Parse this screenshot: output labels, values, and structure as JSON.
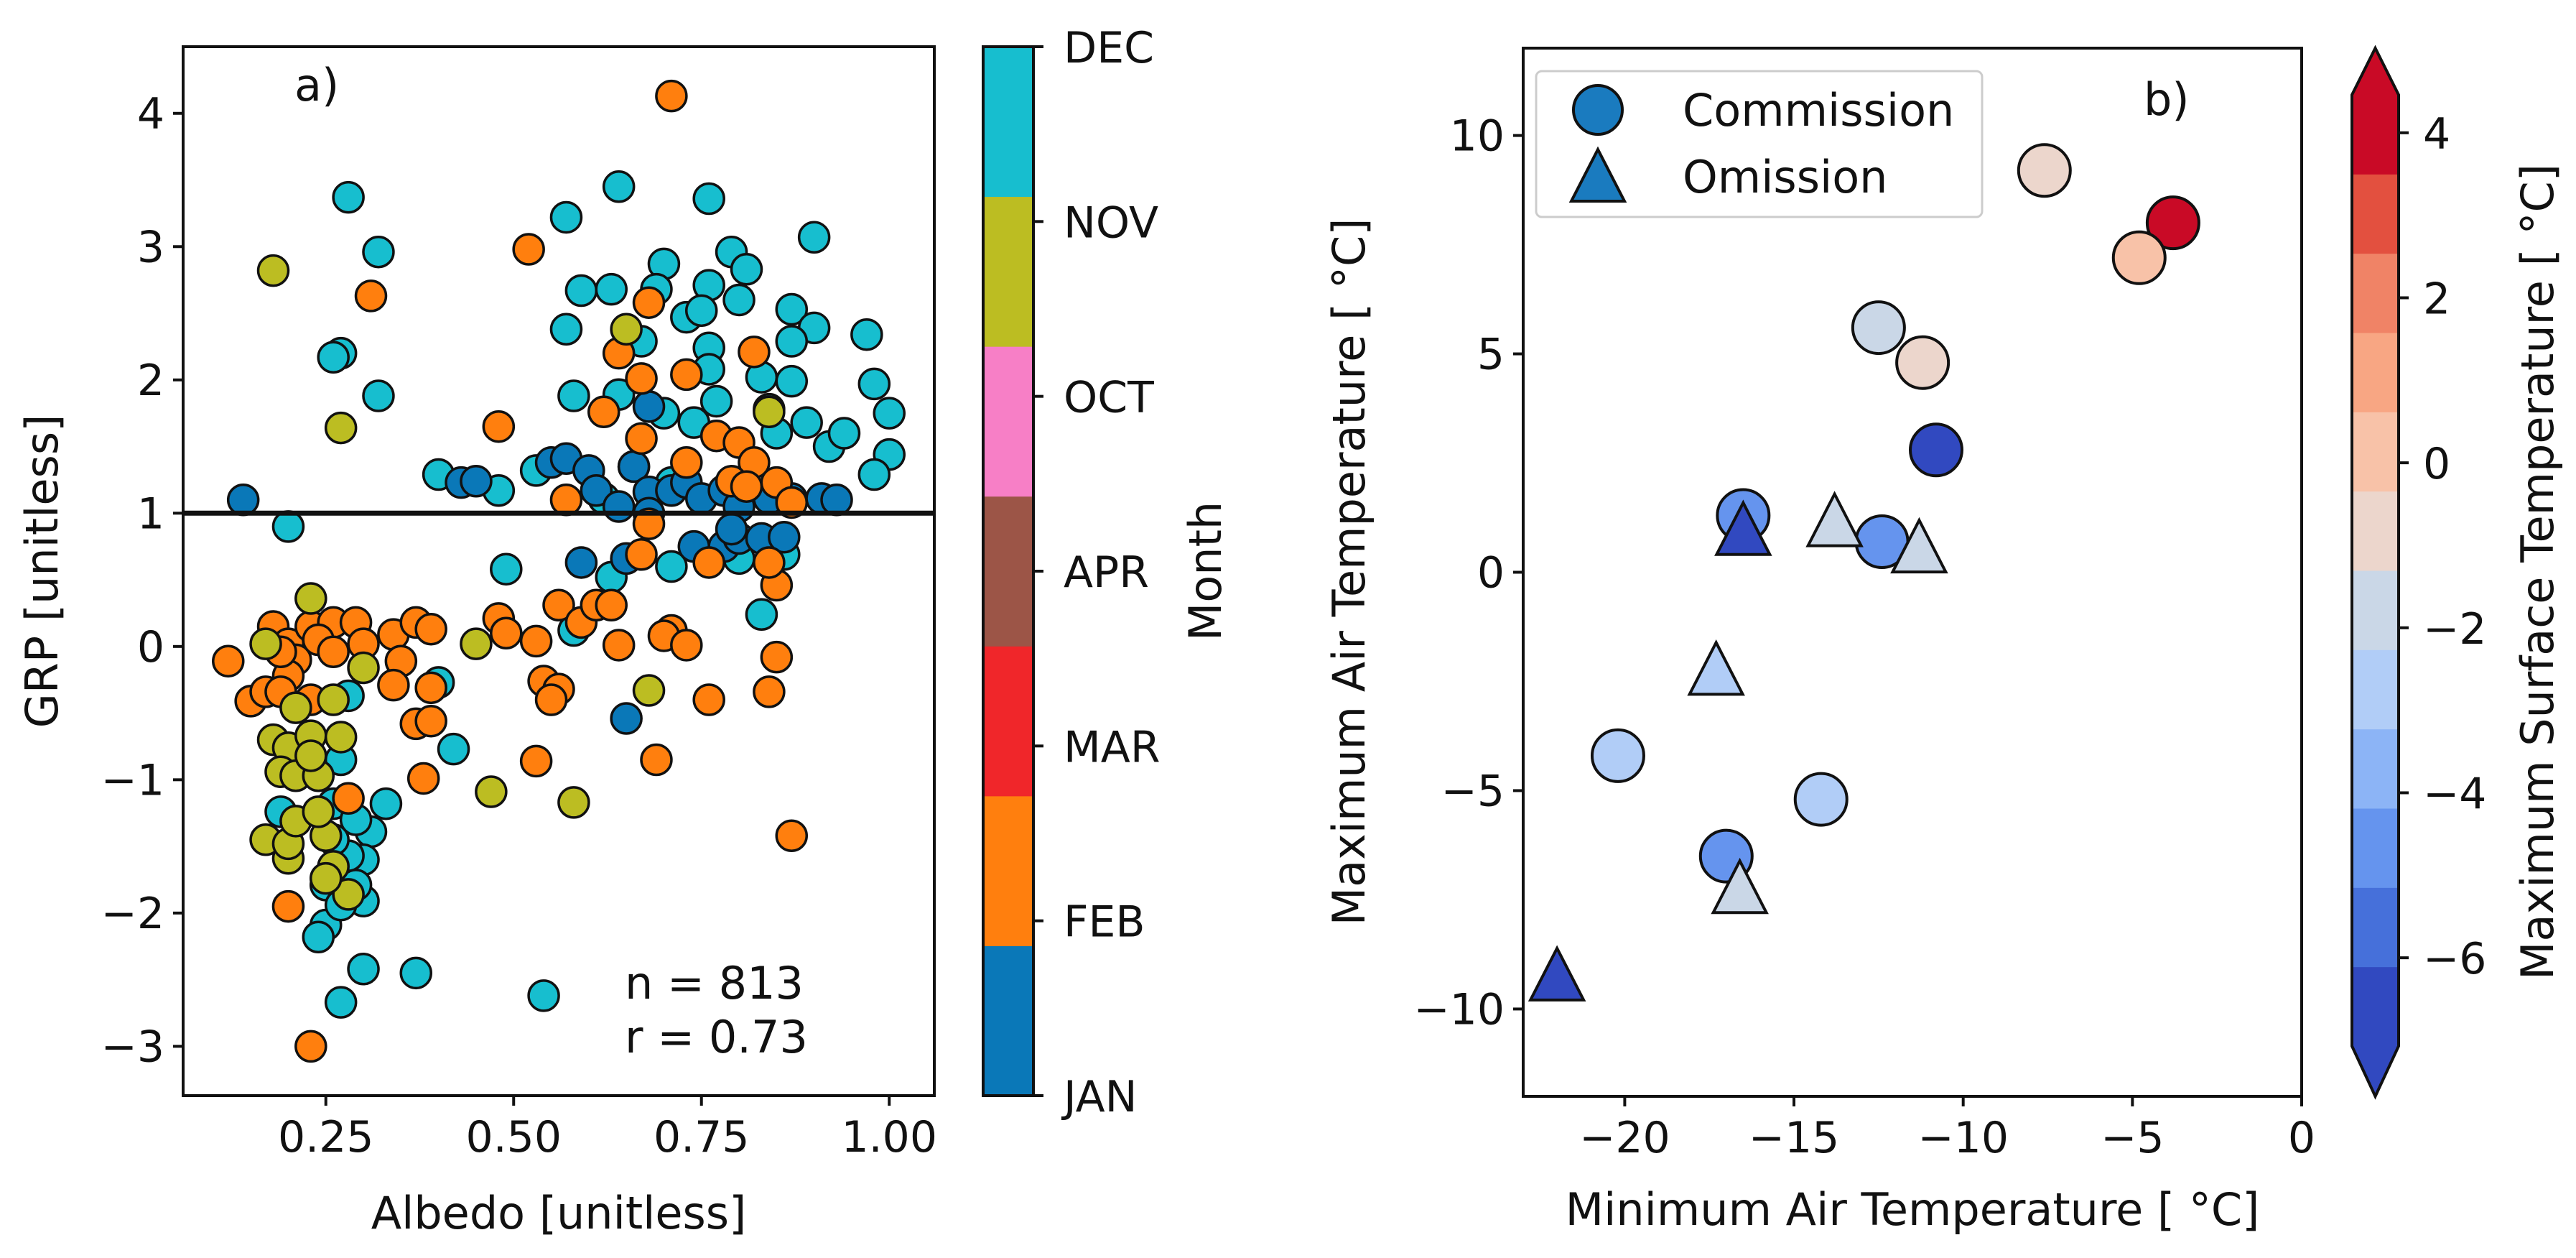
{
  "chart_data": [
    {
      "type": "scatter",
      "panel_label": "a)",
      "xlabel": "Albedo [unitless]",
      "ylabel": "GRP [unitless]",
      "xlim": [
        0.06,
        1.06
      ],
      "ylim": [
        -3.37,
        4.5
      ],
      "xticks": [
        0.25,
        0.5,
        0.75,
        1.0
      ],
      "xtick_labels": [
        "0.25",
        "0.50",
        "0.75",
        "1.00"
      ],
      "yticks": [
        -3,
        -2,
        -1,
        0,
        1,
        2,
        3,
        4
      ],
      "ytick_labels": [
        "−3",
        "−2",
        "−1",
        "0",
        "1",
        "2",
        "3",
        "4"
      ],
      "reference_line_y": 1,
      "annotation": [
        "n = 813",
        "r = 0.73"
      ],
      "colorbar": {
        "label": "Month",
        "categories": [
          "JAN",
          "FEB",
          "MAR",
          "APR",
          "OCT",
          "NOV",
          "DEC"
        ],
        "colors": [
          "#0a78b8",
          "#ff7f0e",
          "#f0262a",
          "#9c5547",
          "#f77fc6",
          "#bcbd22",
          "#17becf"
        ]
      },
      "note": "Representative sample of the 813 points; month index into colorbar.categories",
      "points": [
        [
          0.28,
          3.37,
          6
        ],
        [
          0.32,
          2.96,
          6
        ],
        [
          0.27,
          2.2,
          6
        ],
        [
          0.26,
          2.17,
          6
        ],
        [
          0.32,
          1.88,
          6
        ],
        [
          0.2,
          0.9,
          6
        ],
        [
          0.64,
          3.45,
          6
        ],
        [
          0.57,
          3.22,
          6
        ],
        [
          0.76,
          3.36,
          6
        ],
        [
          0.9,
          3.07,
          6
        ],
        [
          0.79,
          2.96,
          6
        ],
        [
          0.81,
          2.83,
          6
        ],
        [
          0.7,
          2.87,
          6
        ],
        [
          0.59,
          2.67,
          6
        ],
        [
          0.63,
          2.68,
          6
        ],
        [
          0.69,
          2.68,
          6
        ],
        [
          0.76,
          2.71,
          6
        ],
        [
          0.8,
          2.6,
          6
        ],
        [
          0.87,
          2.53,
          6
        ],
        [
          0.57,
          2.38,
          6
        ],
        [
          0.9,
          2.39,
          6
        ],
        [
          0.97,
          2.34,
          6
        ],
        [
          0.73,
          2.47,
          6
        ],
        [
          0.75,
          2.52,
          6
        ],
        [
          0.67,
          2.29,
          6
        ],
        [
          0.87,
          2.29,
          6
        ],
        [
          0.76,
          2.24,
          6
        ],
        [
          0.76,
          2.08,
          6
        ],
        [
          0.83,
          2.02,
          6
        ],
        [
          0.87,
          1.99,
          6
        ],
        [
          0.98,
          1.97,
          6
        ],
        [
          0.58,
          1.88,
          6
        ],
        [
          0.64,
          1.89,
          6
        ],
        [
          0.77,
          1.84,
          6
        ],
        [
          0.7,
          1.75,
          6
        ],
        [
          0.84,
          1.78,
          6
        ],
        [
          0.89,
          1.68,
          6
        ],
        [
          1.0,
          1.75,
          6
        ],
        [
          0.74,
          1.68,
          6
        ],
        [
          0.4,
          1.29,
          6
        ],
        [
          0.48,
          1.17,
          6
        ],
        [
          0.53,
          1.32,
          6
        ],
        [
          0.92,
          1.5,
          6
        ],
        [
          0.94,
          1.6,
          6
        ],
        [
          1.0,
          1.44,
          6
        ],
        [
          0.98,
          1.29,
          6
        ],
        [
          0.85,
          1.6,
          6
        ],
        [
          0.66,
          1.35,
          6
        ],
        [
          0.62,
          1.11,
          6
        ],
        [
          0.71,
          1.23,
          6
        ],
        [
          0.49,
          0.58,
          6
        ],
        [
          0.63,
          0.52,
          6
        ],
        [
          0.71,
          0.6,
          6
        ],
        [
          0.8,
          0.66,
          6
        ],
        [
          0.86,
          0.69,
          6
        ],
        [
          0.83,
          0.24,
          6
        ],
        [
          0.58,
          0.12,
          6
        ],
        [
          0.4,
          -0.27,
          6
        ],
        [
          0.42,
          -0.77,
          6
        ],
        [
          0.28,
          -0.37,
          6
        ],
        [
          0.27,
          -0.85,
          6
        ],
        [
          0.19,
          -1.24,
          6
        ],
        [
          0.26,
          -1.18,
          6
        ],
        [
          0.33,
          -1.18,
          6
        ],
        [
          0.31,
          -1.39,
          6
        ],
        [
          0.3,
          -1.6,
          6
        ],
        [
          0.3,
          -1.91,
          6
        ],
        [
          0.25,
          -2.09,
          6
        ],
        [
          0.24,
          -2.18,
          6
        ],
        [
          0.3,
          -2.42,
          6
        ],
        [
          0.37,
          -2.45,
          6
        ],
        [
          0.27,
          -2.67,
          6
        ],
        [
          0.54,
          -2.62,
          6
        ],
        [
          0.29,
          -1.79,
          6
        ],
        [
          0.25,
          -1.79,
          6
        ],
        [
          0.28,
          -1.57,
          6
        ],
        [
          0.26,
          -1.45,
          6
        ],
        [
          0.27,
          -1.94,
          6
        ],
        [
          0.29,
          -1.3,
          6
        ],
        [
          0.14,
          1.1,
          0
        ],
        [
          0.43,
          1.23,
          0
        ],
        [
          0.45,
          1.24,
          0
        ],
        [
          0.55,
          1.38,
          0
        ],
        [
          0.57,
          1.41,
          0
        ],
        [
          0.6,
          1.32,
          0
        ],
        [
          0.61,
          1.17,
          0
        ],
        [
          0.66,
          1.35,
          0
        ],
        [
          0.68,
          1.8,
          0
        ],
        [
          0.68,
          1.16,
          0
        ],
        [
          0.71,
          1.17,
          0
        ],
        [
          0.73,
          1.23,
          0
        ],
        [
          0.75,
          1.11,
          0
        ],
        [
          0.78,
          1.17,
          0
        ],
        [
          0.8,
          1.05,
          0
        ],
        [
          0.84,
          1.11,
          0
        ],
        [
          0.87,
          1.11,
          0
        ],
        [
          0.91,
          1.11,
          0
        ],
        [
          0.93,
          1.1,
          0
        ],
        [
          0.64,
          1.05,
          0
        ],
        [
          0.59,
          0.63,
          0
        ],
        [
          0.74,
          0.75,
          0
        ],
        [
          0.78,
          0.75,
          0
        ],
        [
          0.8,
          0.81,
          0
        ],
        [
          0.83,
          0.81,
          0
        ],
        [
          0.86,
          0.82,
          0
        ],
        [
          0.65,
          -0.54,
          0
        ],
        [
          0.65,
          0.66,
          0
        ],
        [
          0.68,
          1.0,
          0
        ],
        [
          0.79,
          0.88,
          0
        ],
        [
          0.71,
          4.13,
          1
        ],
        [
          0.52,
          2.98,
          1
        ],
        [
          0.31,
          2.63,
          1
        ],
        [
          0.68,
          2.58,
          1
        ],
        [
          0.64,
          2.2,
          1
        ],
        [
          0.82,
          2.21,
          1
        ],
        [
          0.73,
          2.04,
          1
        ],
        [
          0.67,
          2.01,
          1
        ],
        [
          0.48,
          1.65,
          1
        ],
        [
          0.62,
          1.76,
          1
        ],
        [
          0.67,
          1.56,
          1
        ],
        [
          0.77,
          1.58,
          1
        ],
        [
          0.8,
          1.53,
          1
        ],
        [
          0.73,
          1.38,
          1
        ],
        [
          0.82,
          1.38,
          1
        ],
        [
          0.79,
          1.24,
          1
        ],
        [
          0.81,
          1.2,
          1
        ],
        [
          0.85,
          1.23,
          1
        ],
        [
          0.87,
          1.08,
          1
        ],
        [
          0.57,
          1.1,
          1
        ],
        [
          0.68,
          0.92,
          1
        ],
        [
          0.67,
          0.69,
          1
        ],
        [
          0.76,
          0.63,
          1
        ],
        [
          0.85,
          0.46,
          1
        ],
        [
          0.84,
          0.63,
          1
        ],
        [
          0.56,
          0.31,
          1
        ],
        [
          0.59,
          0.18,
          1
        ],
        [
          0.61,
          0.31,
          1
        ],
        [
          0.63,
          0.31,
          1
        ],
        [
          0.48,
          0.21,
          1
        ],
        [
          0.49,
          0.1,
          1
        ],
        [
          0.53,
          0.04,
          1
        ],
        [
          0.64,
          0.01,
          1
        ],
        [
          0.71,
          0.12,
          1
        ],
        [
          0.7,
          0.08,
          1
        ],
        [
          0.73,
          0.01,
          1
        ],
        [
          0.12,
          -0.11,
          1
        ],
        [
          0.15,
          -0.41,
          1
        ],
        [
          0.34,
          0.09,
          1
        ],
        [
          0.37,
          0.18,
          1
        ],
        [
          0.39,
          0.13,
          1
        ],
        [
          0.35,
          -0.11,
          1
        ],
        [
          0.34,
          -0.29,
          1
        ],
        [
          0.39,
          -0.31,
          1
        ],
        [
          0.37,
          -0.58,
          1
        ],
        [
          0.39,
          -0.56,
          1
        ],
        [
          0.38,
          -0.99,
          1
        ],
        [
          0.53,
          -0.86,
          1
        ],
        [
          0.54,
          -0.26,
          1
        ],
        [
          0.56,
          -0.32,
          1
        ],
        [
          0.55,
          -0.4,
          1
        ],
        [
          0.76,
          -0.4,
          1
        ],
        [
          0.84,
          -0.34,
          1
        ],
        [
          0.85,
          -0.08,
          1
        ],
        [
          0.69,
          -0.85,
          1
        ],
        [
          0.87,
          -1.42,
          1
        ],
        [
          0.2,
          -1.95,
          1
        ],
        [
          0.23,
          -3.0,
          1
        ],
        [
          0.28,
          -1.14,
          1
        ],
        [
          0.18,
          0.15,
          1
        ],
        [
          0.2,
          0.02,
          1
        ],
        [
          0.23,
          0.15,
          1
        ],
        [
          0.26,
          0.18,
          1
        ],
        [
          0.29,
          0.18,
          1
        ],
        [
          0.3,
          0.02,
          1
        ],
        [
          0.21,
          -0.1,
          1
        ],
        [
          0.2,
          -0.22,
          1
        ],
        [
          0.19,
          -0.04,
          1
        ],
        [
          0.24,
          0.05,
          1
        ],
        [
          0.26,
          -0.04,
          1
        ],
        [
          0.17,
          -0.34,
          1
        ],
        [
          0.19,
          -0.34,
          1
        ],
        [
          0.23,
          -0.4,
          1
        ],
        [
          0.18,
          2.82,
          5
        ],
        [
          0.27,
          1.64,
          5
        ],
        [
          0.65,
          2.38,
          5
        ],
        [
          0.84,
          1.76,
          5
        ],
        [
          0.45,
          0.02,
          5
        ],
        [
          0.68,
          -0.33,
          5
        ],
        [
          0.47,
          -1.09,
          5
        ],
        [
          0.58,
          -1.17,
          5
        ],
        [
          0.23,
          0.36,
          5
        ],
        [
          0.17,
          0.02,
          5
        ],
        [
          0.18,
          -0.7,
          5
        ],
        [
          0.2,
          -0.76,
          5
        ],
        [
          0.23,
          -0.67,
          5
        ],
        [
          0.19,
          -0.94,
          5
        ],
        [
          0.21,
          -0.97,
          5
        ],
        [
          0.24,
          -0.97,
          5
        ],
        [
          0.27,
          -0.68,
          5
        ],
        [
          0.23,
          -0.82,
          5
        ],
        [
          0.17,
          -1.45,
          5
        ],
        [
          0.2,
          -1.59,
          5
        ],
        [
          0.2,
          -1.48,
          5
        ],
        [
          0.25,
          -1.42,
          5
        ],
        [
          0.26,
          -1.65,
          5
        ],
        [
          0.28,
          -1.86,
          5
        ],
        [
          0.25,
          -1.74,
          5
        ],
        [
          0.21,
          -1.31,
          5
        ],
        [
          0.24,
          -1.24,
          5
        ],
        [
          0.3,
          -0.16,
          5
        ],
        [
          0.26,
          -0.4,
          5
        ],
        [
          0.21,
          -0.46,
          5
        ]
      ]
    },
    {
      "type": "scatter",
      "panel_label": "b)",
      "xlabel": "Minimum Air Temperature [ °C]",
      "ylabel": "Maximum Air Temperature [ °C]",
      "xlim": [
        -23,
        0
      ],
      "ylim": [
        -12,
        12
      ],
      "xticks": [
        -20,
        -15,
        -10,
        -5,
        0
      ],
      "xtick_labels": [
        "−20",
        "−15",
        "−10",
        "−5",
        "0"
      ],
      "yticks": [
        -10,
        -5,
        0,
        5,
        10
      ],
      "ytick_labels": [
        "−10",
        "−5",
        "0",
        "5",
        "10"
      ],
      "legend": {
        "position": "top-left",
        "entries": [
          {
            "label": "Commission",
            "marker": "circle"
          },
          {
            "label": "Omission",
            "marker": "triangle"
          }
        ],
        "color": "#1a7bbf"
      },
      "colorbar": {
        "label": "Maximum Surface Temperature [ °C]",
        "range": [
          -7.07,
          4.46
        ],
        "extend": "both",
        "ticks": [
          -6,
          -4,
          -2,
          0,
          2,
          4
        ],
        "tick_labels": [
          "−6",
          "−4",
          "−2",
          "0",
          "2",
          "4"
        ],
        "colors": [
          "#3149c0",
          "#4670da",
          "#6594ee",
          "#8cb4f6",
          "#b1cdf7",
          "#cad7e7",
          "#ecd6cc",
          "#f8c2a8",
          "#f8a683",
          "#f08366",
          "#e3503f",
          "#c90a26"
        ]
      },
      "series": [
        {
          "name": "Commission",
          "marker": "circle",
          "points": [
            [
              -7.6,
              9.2,
              -0.5
            ],
            [
              -3.8,
              8.0,
              4.0
            ],
            [
              -4.8,
              7.2,
              0.5
            ],
            [
              -12.5,
              5.6,
              -1.5
            ],
            [
              -11.2,
              4.8,
              -0.5
            ],
            [
              -10.8,
              2.8,
              -6.5
            ],
            [
              -16.5,
              1.3,
              -4.5
            ],
            [
              -12.4,
              0.7,
              -4.5
            ],
            [
              -20.2,
              -4.2,
              -3.0
            ],
            [
              -14.2,
              -5.2,
              -3.0
            ],
            [
              -17.0,
              -6.5,
              -4.5
            ]
          ]
        },
        {
          "name": "Omission",
          "marker": "triangle",
          "points": [
            [
              -16.5,
              0.9,
              -6.5
            ],
            [
              -13.8,
              1.1,
              -1.5
            ],
            [
              -11.3,
              0.5,
              -1.5
            ],
            [
              -17.3,
              -2.3,
              -3.0
            ],
            [
              -16.6,
              -7.3,
              -1.5
            ],
            [
              -22.0,
              -9.3,
              -6.5
            ]
          ]
        }
      ]
    }
  ]
}
